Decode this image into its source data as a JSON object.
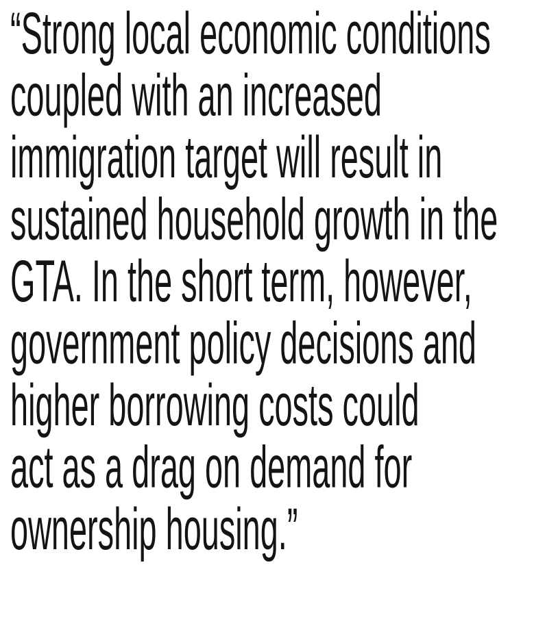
{
  "quote": {
    "lines": [
      "“Strong local economic conditions",
      "coupled with an increased",
      "immigration target will result in",
      "sustained household growth in the",
      "GTA. In the short term, however,",
      "government policy decisions and",
      "higher borrowing costs could",
      "act as a drag on demand for",
      "ownership housing.”"
    ]
  }
}
